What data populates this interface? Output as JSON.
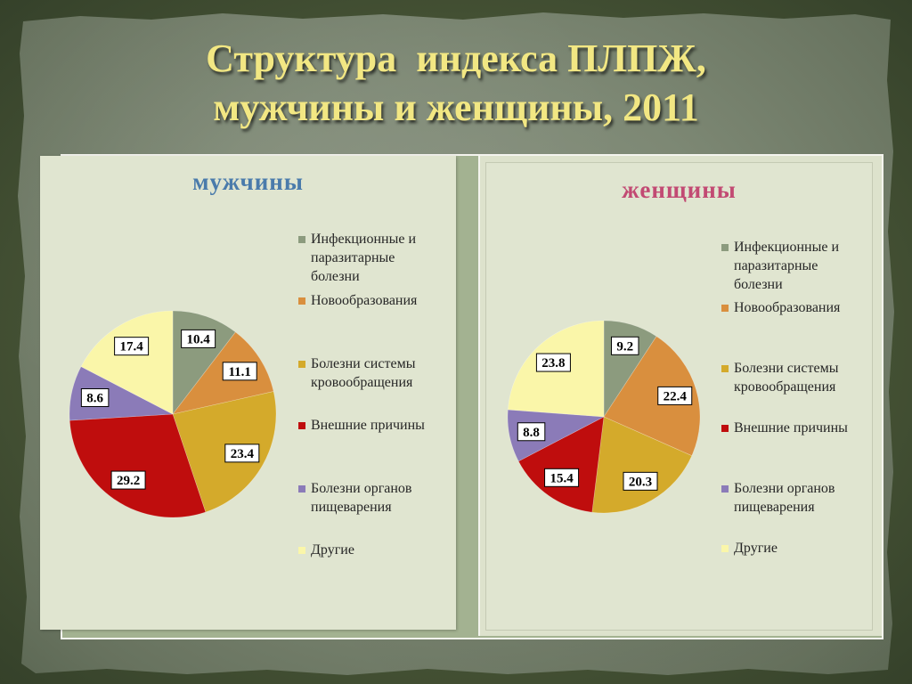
{
  "slide": {
    "title_line1": "Структура  индекса ПЛПЖ,",
    "title_line2": "мужчины и женщины, 2011"
  },
  "colors": {
    "title": "#f2e783"
  },
  "chart_data": [
    {
      "type": "pie",
      "title": "мужчины",
      "title_color": "#4a7bab",
      "categories": [
        "Инфекционные и паразитарные болезни",
        "Новообразования",
        "Болезни системы кровообращения",
        "Внешние причины",
        "Болезни органов пищеварения",
        "Другие"
      ],
      "values": [
        10.4,
        11.1,
        23.4,
        29.2,
        8.6,
        17.4
      ],
      "colors": [
        "#8c9b7e",
        "#d98f3e",
        "#d4aa2b",
        "#bf0d0d",
        "#8b7bb8",
        "#faf6a9"
      ],
      "legend": "right"
    },
    {
      "type": "pie",
      "title": "женщины",
      "title_color": "#c24a73",
      "categories": [
        "Инфекционные и паразитарные болезни",
        "Новообразования",
        "Болезни системы кровообращения",
        "Внешние причины",
        "Болезни органов пищеварения",
        "Другие"
      ],
      "values": [
        9.2,
        22.4,
        20.3,
        15.4,
        8.8,
        23.8
      ],
      "colors": [
        "#8c9b7e",
        "#d98f3e",
        "#d4aa2b",
        "#bf0d0d",
        "#8b7bb8",
        "#faf6a9"
      ],
      "legend": "right"
    }
  ]
}
